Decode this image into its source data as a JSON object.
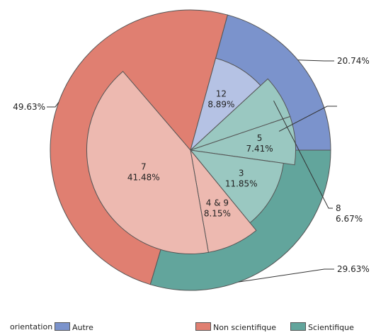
{
  "chart_data": {
    "type": "pie",
    "subtype": "nested-pie",
    "outer_ring": [
      {
        "name": "Autre",
        "percent": 20.74,
        "label": "20.74%",
        "color": "#7B93CC"
      },
      {
        "name": "Scientifique",
        "percent": 29.63,
        "label": "29.63%",
        "color": "#62A59C"
      },
      {
        "name": "Non scientifique",
        "percent": 49.63,
        "label": "49.63%",
        "color": "#E07F71"
      }
    ],
    "inner_slices": [
      {
        "group": "Autre",
        "category": "12",
        "percent": 8.89,
        "label": "12\n8.89%",
        "radius_fraction": 0.68,
        "color": "#B5C2E4"
      },
      {
        "group": "Scientifique",
        "category": "8",
        "percent": 6.67,
        "label": "8\n6.67%",
        "radius_fraction": 0.75,
        "color": "#9AC8C1"
      },
      {
        "group": "Scientifique",
        "category": "5",
        "percent": 7.41,
        "label": "5\n7.41%",
        "radius_fraction": 0.75,
        "color": "#9AC8C1"
      },
      {
        "group": "Scientifique",
        "category": "3",
        "percent": 11.85,
        "label": "3\n11.85%",
        "radius_fraction": 0.67,
        "color": "#9AC8C1"
      },
      {
        "group": "Non scientifique",
        "category": "4 & 9",
        "percent": 8.15,
        "label": "4 & 9\n8.15%",
        "radius_fraction": 0.74,
        "color": "#EDB9B0"
      },
      {
        "group": "Non scientifique",
        "category": "7",
        "percent": 41.48,
        "label": "7\n41.48%",
        "radius_fraction": 0.74,
        "color": "#EDB9B0"
      }
    ],
    "legend": {
      "title": "orientation",
      "placement": "bottom",
      "items": [
        {
          "label": "Autre",
          "color": "#7B93CC"
        },
        {
          "label": "Non scientifique",
          "color": "#E07F71"
        },
        {
          "label": "Scientifique",
          "color": "#62A59C"
        }
      ]
    }
  }
}
